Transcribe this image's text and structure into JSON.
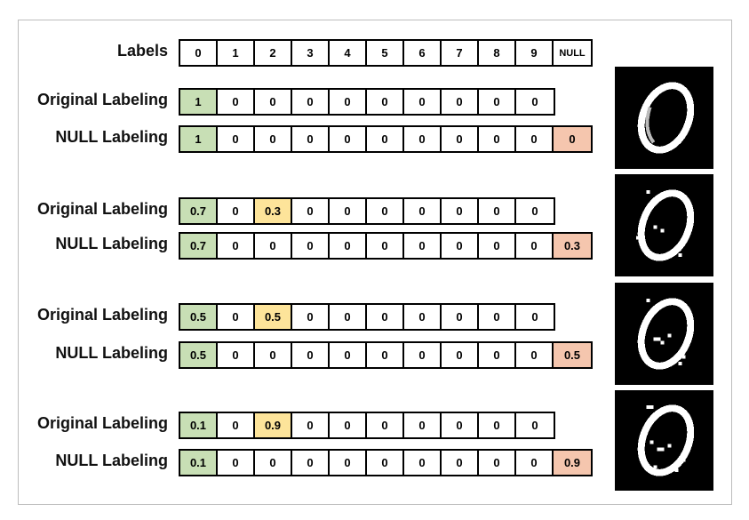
{
  "header": {
    "label": "Labels",
    "columns": [
      "0",
      "1",
      "2",
      "3",
      "4",
      "5",
      "6",
      "7",
      "8",
      "9",
      "NULL"
    ]
  },
  "groups": [
    {
      "original": {
        "label": "Original Labeling",
        "values": [
          "1",
          "0",
          "0",
          "0",
          "0",
          "0",
          "0",
          "0",
          "0",
          "0"
        ]
      },
      "null": {
        "label": "NULL Labeling",
        "values": [
          "1",
          "0",
          "0",
          "0",
          "0",
          "0",
          "0",
          "0",
          "0",
          "0",
          "0"
        ]
      }
    },
    {
      "original": {
        "label": "Original Labeling",
        "values": [
          "0.7",
          "0",
          "0.3",
          "0",
          "0",
          "0",
          "0",
          "0",
          "0",
          "0"
        ]
      },
      "null": {
        "label": "NULL Labeling",
        "values": [
          "0.7",
          "0",
          "0",
          "0",
          "0",
          "0",
          "0",
          "0",
          "0",
          "0",
          "0.3"
        ]
      }
    },
    {
      "original": {
        "label": "Original Labeling",
        "values": [
          "0.5",
          "0",
          "0.5",
          "0",
          "0",
          "0",
          "0",
          "0",
          "0",
          "0"
        ]
      },
      "null": {
        "label": "NULL Labeling",
        "values": [
          "0.5",
          "0",
          "0",
          "0",
          "0",
          "0",
          "0",
          "0",
          "0",
          "0",
          "0.5"
        ]
      }
    },
    {
      "original": {
        "label": "Original Labeling",
        "values": [
          "0.1",
          "0",
          "0.9",
          "0",
          "0",
          "0",
          "0",
          "0",
          "0",
          "0"
        ]
      },
      "null": {
        "label": "NULL Labeling",
        "values": [
          "0.1",
          "0",
          "0",
          "0",
          "0",
          "0",
          "0",
          "0",
          "0",
          "0",
          "0.9"
        ]
      }
    }
  ],
  "colors": {
    "true_label": "#c8dfb5",
    "noise_label": "#fde49a",
    "null_label": "#f5c6ae"
  }
}
